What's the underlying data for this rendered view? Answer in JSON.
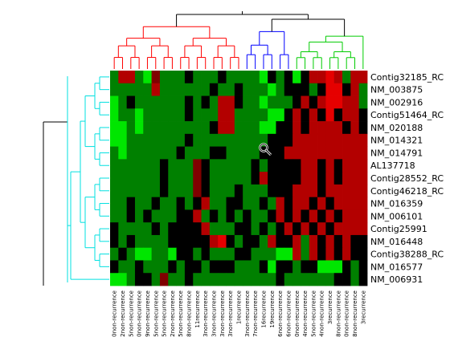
{
  "chart_data": {
    "type": "heatmap",
    "title": "",
    "row_labels": [
      "Contig32185_RC",
      "NM_003875",
      "NM_002916",
      "Contig51464_RC",
      "NM_020188",
      "NM_014321",
      "NM_014791",
      "AL137718",
      "Contig28552_RC",
      "Contig46218_RC",
      "NM_016359",
      "NM_006101",
      "Contig25991",
      "NM_016448",
      "Contig38288_RC",
      "NM_016577",
      "NM_006931"
    ],
    "column_labels": [
      "0non-recurrence",
      "2non-recurrence",
      "5non-recurrence",
      "0non-recurrence",
      "9non-recurrence",
      "5non-recurrence",
      "5non-recurrence",
      "2non-recurrence",
      "5non-recurrence",
      "8non-recurrence",
      "11recurrence",
      "3non-recurrence",
      "3non-recurrence",
      "3non-recurrence",
      "3non-recurrence",
      "1recurrence",
      "3non-recurrence",
      "7non-recurrence",
      "16recurrence",
      "19recurrence",
      "6non-recurrence",
      "6non-recurrence",
      "0non-recurrence",
      "4non-recurrence",
      "5non-recurrence",
      "4non-recurrence",
      "3recurrence",
      "8non-recurrence",
      "0non-recurrence",
      "8non-recurrence",
      "3recurrence"
    ],
    "color_scale": {
      "low": "#00ff00",
      "mid": "#000000",
      "high": "#ff0000",
      "range": [
        -1,
        1
      ]
    },
    "values": [
      [
        -0.5,
        0.7,
        0.7,
        -0.5,
        -0.9,
        0.5,
        -0.5,
        -0.5,
        -0.5,
        0.0,
        -0.5,
        -0.5,
        -0.5,
        0.0,
        -0.5,
        -0.5,
        -0.5,
        -0.5,
        -0.9,
        0.0,
        -0.5,
        0.0,
        -0.9,
        0.0,
        0.7,
        0.7,
        0.9,
        0.7,
        -0.5,
        0.7,
        0.7
      ],
      [
        -0.5,
        -0.5,
        -0.5,
        -0.5,
        -0.5,
        0.7,
        -0.5,
        -0.5,
        -0.5,
        -0.5,
        -0.5,
        -0.5,
        0.0,
        -0.5,
        -0.5,
        0.0,
        -0.5,
        -0.5,
        -0.5,
        -0.9,
        -0.5,
        0.0,
        0.0,
        0.0,
        -0.5,
        0.0,
        0.9,
        0.9,
        0.0,
        0.7,
        -0.5
      ],
      [
        -0.9,
        -0.5,
        0.0,
        -0.5,
        -0.5,
        -0.5,
        -0.5,
        -0.5,
        -0.5,
        0.0,
        -0.5,
        0.0,
        -0.5,
        0.7,
        0.7,
        0.0,
        -0.5,
        -0.5,
        -0.9,
        -0.5,
        -0.5,
        -0.5,
        0.0,
        0.7,
        0.0,
        0.7,
        0.9,
        0.9,
        0.7,
        0.7,
        -0.5
      ],
      [
        -0.9,
        -0.5,
        -0.5,
        -0.9,
        -0.5,
        -0.5,
        -0.5,
        -0.5,
        -0.5,
        0.0,
        -0.5,
        -0.5,
        -0.5,
        0.7,
        0.7,
        -0.5,
        -0.5,
        -0.5,
        -0.5,
        -0.9,
        -0.9,
        0.0,
        0.7,
        0.0,
        0.7,
        0.0,
        0.9,
        0.0,
        0.7,
        0.7,
        0.0
      ],
      [
        -0.9,
        -0.9,
        -0.5,
        -0.9,
        -0.5,
        -0.5,
        -0.5,
        -0.5,
        -0.5,
        -0.5,
        -0.5,
        -0.5,
        0.0,
        0.7,
        0.7,
        -0.5,
        -0.5,
        -0.5,
        -0.9,
        -0.9,
        0.0,
        0.0,
        0.7,
        0.0,
        0.7,
        0.7,
        0.7,
        0.7,
        0.0,
        0.7,
        0.0
      ],
      [
        -0.9,
        -0.9,
        -0.5,
        -0.5,
        -0.5,
        -0.5,
        -0.5,
        -0.5,
        -0.5,
        0.0,
        -0.5,
        -0.5,
        -0.5,
        -0.5,
        -0.5,
        -0.5,
        -0.5,
        -0.5,
        -0.5,
        0.0,
        0.0,
        0.0,
        0.7,
        0.7,
        0.7,
        0.7,
        0.7,
        0.7,
        0.7,
        0.7,
        0.7
      ],
      [
        -0.5,
        -0.9,
        -0.5,
        -0.5,
        -0.5,
        -0.5,
        -0.5,
        -0.5,
        0.0,
        -0.5,
        -0.5,
        -0.5,
        0.0,
        0.0,
        -0.5,
        -0.5,
        -0.5,
        -0.5,
        0.0,
        0.0,
        0.0,
        0.7,
        0.7,
        0.7,
        0.7,
        0.7,
        0.7,
        0.7,
        0.7,
        0.7,
        0.7
      ],
      [
        -0.5,
        -0.5,
        -0.5,
        -0.5,
        -0.5,
        -0.5,
        0.0,
        -0.5,
        -0.5,
        -0.5,
        0.5,
        0.0,
        -0.5,
        -0.5,
        -0.5,
        -0.5,
        -0.5,
        0.0,
        -0.5,
        0.0,
        0.0,
        0.0,
        0.0,
        0.7,
        0.7,
        0.0,
        0.7,
        0.0,
        0.7,
        0.7,
        0.7
      ],
      [
        -0.5,
        -0.5,
        -0.5,
        -0.5,
        -0.5,
        -0.5,
        0.0,
        -0.5,
        -0.5,
        -0.5,
        0.5,
        0.0,
        -0.5,
        -0.5,
        -0.5,
        -0.5,
        -0.5,
        0.0,
        0.7,
        0.0,
        0.0,
        0.0,
        0.0,
        0.7,
        0.7,
        0.0,
        0.7,
        0.0,
        0.7,
        0.7,
        0.7
      ],
      [
        -0.5,
        -0.5,
        -0.5,
        -0.5,
        -0.5,
        -0.5,
        0.0,
        -0.5,
        -0.5,
        -0.5,
        0.5,
        0.0,
        -0.5,
        -0.5,
        -0.5,
        0.0,
        -0.5,
        -0.5,
        -0.5,
        0.0,
        0.0,
        0.0,
        0.7,
        0.7,
        0.7,
        0.0,
        0.7,
        0.7,
        0.7,
        0.7,
        0.7
      ],
      [
        -0.5,
        -0.5,
        0.0,
        -0.5,
        -0.5,
        0.0,
        -0.5,
        -0.5,
        0.0,
        -0.5,
        0.0,
        0.7,
        -0.5,
        -0.5,
        0.0,
        0.0,
        -0.5,
        -0.5,
        0.0,
        -0.5,
        0.7,
        0.0,
        0.7,
        0.7,
        0.0,
        0.7,
        0.0,
        0.7,
        0.7,
        0.7,
        0.7
      ],
      [
        -0.5,
        -0.5,
        0.0,
        -0.5,
        0.0,
        -0.5,
        -0.5,
        -0.5,
        0.0,
        0.0,
        0.7,
        -0.5,
        0.0,
        -0.5,
        0.0,
        -0.5,
        0.0,
        -0.5,
        -0.5,
        0.0,
        0.7,
        0.0,
        0.7,
        0.0,
        0.7,
        0.0,
        0.7,
        0.0,
        0.7,
        0.7,
        0.7
      ],
      [
        0.0,
        -0.5,
        -0.5,
        -0.5,
        -0.5,
        0.0,
        -0.5,
        0.0,
        0.0,
        0.0,
        0.0,
        0.7,
        -0.5,
        -0.5,
        -0.5,
        0.0,
        0.0,
        -0.5,
        0.0,
        -0.5,
        0.0,
        0.7,
        0.0,
        0.7,
        0.0,
        0.7,
        0.0,
        0.7,
        0.7,
        0.7,
        0.7
      ],
      [
        0.0,
        -0.5,
        0.0,
        -0.5,
        -0.5,
        -0.5,
        -0.5,
        0.0,
        0.0,
        0.0,
        0.0,
        0.0,
        0.7,
        0.9,
        0.0,
        -0.5,
        0.0,
        0.0,
        -0.5,
        0.7,
        0.0,
        0.0,
        0.7,
        -0.5,
        0.7,
        0.0,
        0.7,
        0.0,
        0.7,
        0.0,
        0.0
      ],
      [
        -0.5,
        0.0,
        -0.5,
        -0.9,
        -0.9,
        -0.5,
        -0.5,
        -0.9,
        0.0,
        0.0,
        -0.5,
        0.0,
        -0.5,
        -0.5,
        -0.5,
        0.0,
        0.0,
        -0.5,
        -0.5,
        -0.5,
        -0.9,
        -0.9,
        0.7,
        -0.5,
        0.7,
        0.0,
        0.7,
        0.0,
        0.7,
        0.0,
        0.0
      ],
      [
        0.0,
        -0.5,
        -0.5,
        0.0,
        -0.5,
        -0.5,
        -0.5,
        0.0,
        -0.5,
        0.0,
        0.0,
        -0.5,
        0.0,
        0.0,
        0.0,
        -0.5,
        -0.5,
        -0.5,
        0.0,
        -0.9,
        0.0,
        0.0,
        -0.5,
        0.0,
        0.0,
        -0.9,
        -0.9,
        -0.9,
        0.0,
        -0.5,
        0.0
      ],
      [
        -0.9,
        -0.9,
        -0.5,
        0.0,
        0.0,
        -0.5,
        0.5,
        -0.5,
        -0.5,
        0.0,
        -0.5,
        -0.5,
        -0.5,
        -0.5,
        -0.5,
        -0.5,
        -0.5,
        -0.5,
        -0.5,
        -0.5,
        0.0,
        -0.5,
        -0.5,
        -0.5,
        -0.5,
        -0.5,
        -0.5,
        0.0,
        0.0,
        -0.5,
        0.0
      ]
    ],
    "column_dendrogram": {
      "cluster_colors": [
        "#ff0000",
        "#0000ff",
        "#00cc00"
      ],
      "cluster_spans": [
        [
          0,
          15
        ],
        [
          16,
          21
        ],
        [
          22,
          30
        ]
      ]
    },
    "row_dendrogram": {
      "color": "#00e0e0"
    }
  }
}
